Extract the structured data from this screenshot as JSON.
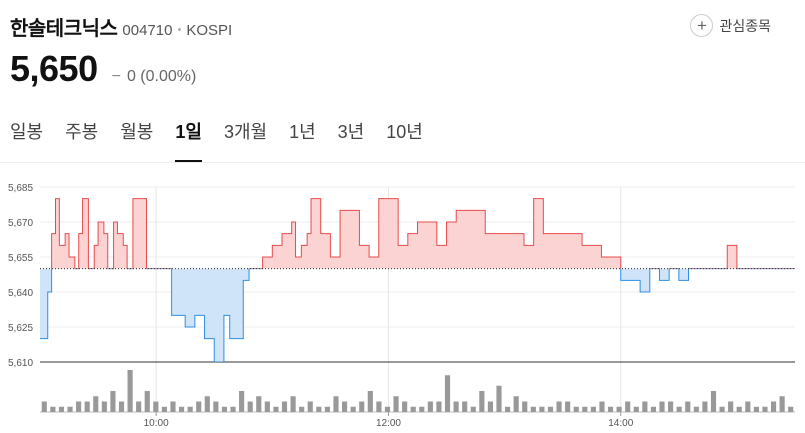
{
  "stock": {
    "name": "한솔테크닉스",
    "code": "004710",
    "separator": "•",
    "market": "KOSPI",
    "price": "5,650",
    "change_sign": "−",
    "change": "0",
    "change_pct": "(0.00%)"
  },
  "watchlist": {
    "icon": "+",
    "label": "관심종목"
  },
  "tabs": [
    {
      "label": "일봉",
      "active": false
    },
    {
      "label": "주봉",
      "active": false
    },
    {
      "label": "월봉",
      "active": false
    },
    {
      "label": "1일",
      "active": true
    },
    {
      "label": "3개월",
      "active": false
    },
    {
      "label": "1년",
      "active": false
    },
    {
      "label": "3년",
      "active": false
    },
    {
      "label": "10년",
      "active": false
    }
  ],
  "colors": {
    "up": "#e94a4a",
    "down": "#2d8fe0",
    "up_fill": "#fbd3d3",
    "down_fill": "#cfe4f8",
    "volume": "#999999"
  },
  "chart_data": {
    "type": "area",
    "baseline": 5650,
    "ylim": [
      5610,
      5685
    ],
    "y_ticks": [
      "5,685",
      "5,670",
      "5,655",
      "5,640",
      "5,625",
      "5,610"
    ],
    "x_ticks": [
      "10:00",
      "12:00",
      "14:00"
    ],
    "series": [
      {
        "x": [
          "09:00",
          "09:04",
          "09:06",
          "09:08",
          "09:10",
          "09:13",
          "09:15",
          "09:18",
          "09:20",
          "09:22",
          "09:25",
          "09:28",
          "09:30",
          "09:33",
          "09:35",
          "09:38",
          "09:40",
          "09:43",
          "09:45",
          "09:48",
          "09:52",
          "09:55",
          "09:58",
          "10:00",
          "10:05",
          "10:08",
          "10:10",
          "10:15",
          "10:20",
          "10:25",
          "10:30",
          "10:35",
          "10:38",
          "10:40",
          "10:43",
          "10:45",
          "10:48",
          "10:50",
          "10:55",
          "11:00",
          "11:05",
          "11:10",
          "11:12",
          "11:15",
          "11:18",
          "11:20",
          "11:25",
          "11:30",
          "11:35",
          "11:40",
          "11:45",
          "11:50",
          "11:55",
          "12:00",
          "12:05",
          "12:10",
          "12:15",
          "12:20",
          "12:25",
          "12:30",
          "12:35",
          "12:40",
          "12:50",
          "13:00",
          "13:10",
          "13:15",
          "13:20",
          "13:30",
          "13:40",
          "13:50",
          "14:00",
          "14:10",
          "14:15",
          "14:20",
          "14:25",
          "14:30",
          "14:35",
          "14:40",
          "14:45",
          "14:50",
          "14:55",
          "15:00",
          "15:05",
          "15:10",
          "15:15",
          "15:20",
          "15:25",
          "15:30"
        ],
        "values": [
          5620,
          5640,
          5665,
          5680,
          5660,
          5665,
          5655,
          5650,
          5665,
          5680,
          5650,
          5660,
          5670,
          5665,
          5650,
          5670,
          5665,
          5660,
          5650,
          5680,
          5680,
          5650,
          5650,
          5650,
          5650,
          5630,
          5630,
          5625,
          5630,
          5620,
          5610,
          5630,
          5620,
          5620,
          5620,
          5645,
          5650,
          5650,
          5655,
          5660,
          5665,
          5670,
          5655,
          5660,
          5665,
          5680,
          5665,
          5655,
          5675,
          5675,
          5660,
          5655,
          5680,
          5680,
          5660,
          5665,
          5670,
          5670,
          5660,
          5670,
          5675,
          5675,
          5665,
          5665,
          5660,
          5680,
          5665,
          5665,
          5660,
          5655,
          5645,
          5640,
          5650,
          5645,
          5650,
          5645,
          5650,
          5650,
          5650,
          5650,
          5660,
          5650,
          5650,
          5650,
          5650,
          5650,
          5650,
          5650
        ]
      }
    ],
    "volume": [
      2,
      1,
      1,
      1,
      2,
      2,
      3,
      2,
      4,
      2,
      8,
      2,
      4,
      2,
      1,
      2,
      1,
      1,
      2,
      3,
      2,
      1,
      1,
      4,
      2,
      3,
      2,
      1,
      2,
      3,
      1,
      2,
      1,
      1,
      3,
      2,
      1,
      2,
      4,
      2,
      1,
      3,
      2,
      1,
      1,
      2,
      2,
      7,
      2,
      2,
      1,
      4,
      2,
      5,
      1,
      3,
      2,
      1,
      1,
      1,
      2,
      2,
      1,
      1,
      1,
      2,
      1,
      1,
      2,
      1,
      2,
      1,
      2,
      2,
      1,
      2,
      1,
      2,
      4,
      1,
      2,
      1,
      2,
      1,
      1,
      2,
      3,
      1
    ]
  }
}
